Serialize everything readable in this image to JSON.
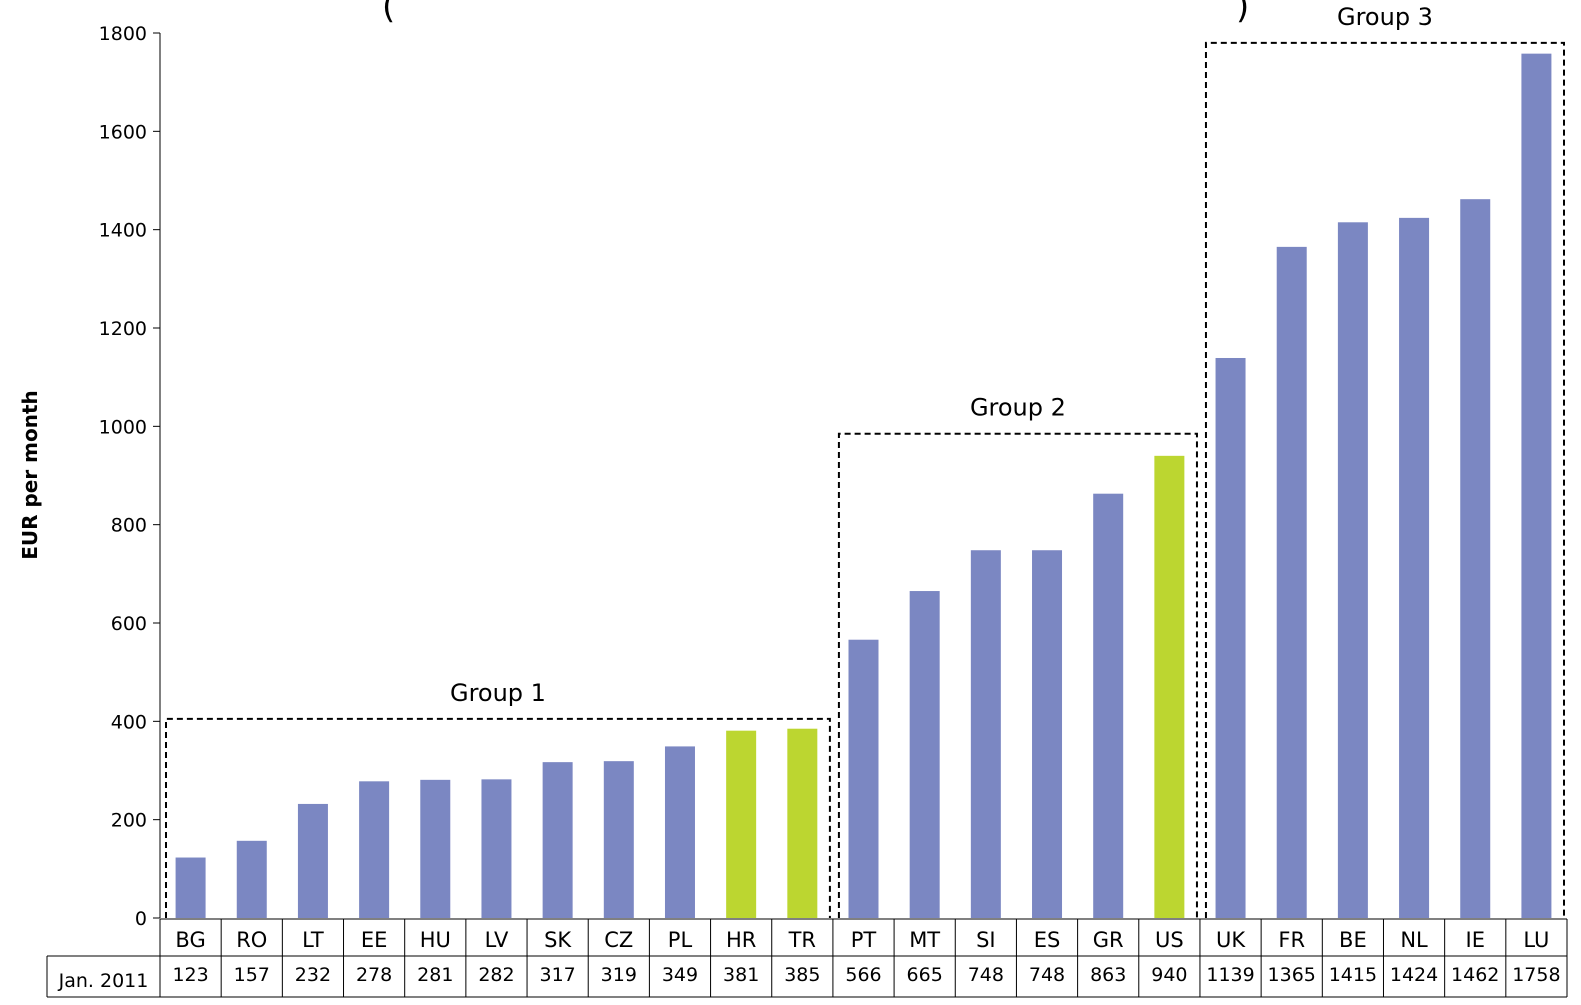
{
  "chart_data": {
    "type": "bar",
    "title_fragments": [
      "(",
      ")"
    ],
    "ylabel": "EUR per month",
    "ylim": [
      0,
      1800
    ],
    "yticks": [
      0,
      200,
      400,
      600,
      800,
      1000,
      1200,
      1400,
      1600,
      1800
    ],
    "table_row_label": "Jan. 2011",
    "categories": [
      "BG",
      "RO",
      "LT",
      "EE",
      "HU",
      "LV",
      "SK",
      "CZ",
      "PL",
      "HR",
      "TR",
      "PT",
      "MT",
      "SI",
      "ES",
      "GR",
      "US",
      "UK",
      "FR",
      "BE",
      "NL",
      "IE",
      "LU"
    ],
    "values": [
      123,
      157,
      232,
      278,
      281,
      282,
      317,
      319,
      349,
      381,
      385,
      566,
      665,
      748,
      748,
      863,
      940,
      1139,
      1365,
      1415,
      1424,
      1462,
      1758
    ],
    "highlighted": [
      "HR",
      "TR",
      "US"
    ],
    "colors": {
      "bar": "#7b87c2",
      "highlight": "#bcd630",
      "axis": "#000000"
    },
    "groups": [
      {
        "label": "Group 1",
        "from": "BG",
        "to": "TR",
        "level": 405
      },
      {
        "label": "Group 2",
        "from": "PT",
        "to": "US",
        "level": 985
      },
      {
        "label": "Group 3",
        "from": "UK",
        "to": "LU",
        "level": 1780
      }
    ],
    "grid": false,
    "legend": "none"
  }
}
